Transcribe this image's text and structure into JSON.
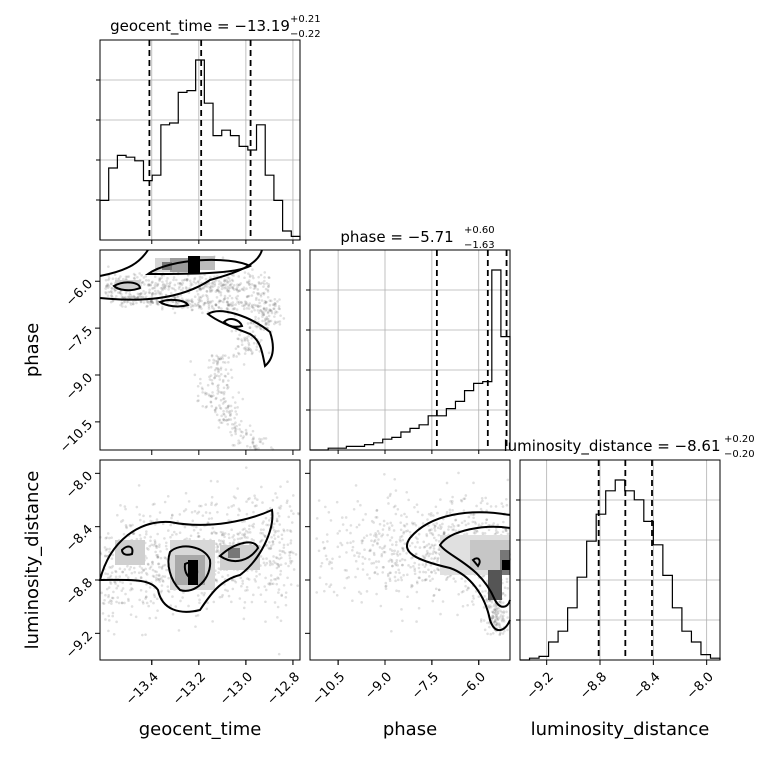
{
  "chart_data": {
    "type": "corner",
    "parameters": [
      "geocent_time",
      "phase",
      "luminosity_distance"
    ],
    "titles": [
      {
        "param": "geocent_time",
        "value": "−13.19",
        "plus": "+0.21",
        "minus": "−0.22",
        "prefix": "geocent_time = "
      },
      {
        "param": "phase",
        "value": "−5.71",
        "plus": "+0.60",
        "minus": "−1.63",
        "prefix": "phase = "
      },
      {
        "param": "luminosity_distance",
        "value": "−8.61",
        "plus": "+0.20",
        "minus": "−0.20",
        "prefix": "luminosity_distance = "
      }
    ],
    "ranges": {
      "geocent_time": [
        -13.62,
        -12.77
      ],
      "phase": [
        -11.4,
        -5.0
      ],
      "luminosity_distance": [
        -9.4,
        -7.9
      ]
    },
    "ticks": {
      "geocent_time": {
        "values": [
          -13.4,
          -13.2,
          -13.0,
          -12.8
        ],
        "labels": [
          "−13.4",
          "−13.2",
          "−13.0",
          "−12.8"
        ]
      },
      "phase": {
        "values": [
          -10.5,
          -9.0,
          -7.5,
          -6.0
        ],
        "labels": [
          "−10.5",
          "−9.0",
          "−7.5",
          "−6.0"
        ]
      },
      "luminosity_distance": {
        "values": [
          -9.2,
          -8.8,
          -8.4,
          -8.0
        ],
        "labels": [
          "−9.2",
          "−8.8",
          "−8.4",
          "−8.0"
        ]
      }
    },
    "quantiles": {
      "geocent_time": [
        -13.41,
        -13.19,
        -12.98
      ],
      "phase": [
        -7.34,
        -5.71,
        -5.11
      ],
      "luminosity_distance": [
        -8.81,
        -8.61,
        -8.41
      ]
    },
    "histograms": {
      "geocent_time": [
        0.22,
        0.4,
        0.47,
        0.46,
        0.44,
        0.33,
        0.36,
        0.64,
        0.65,
        0.82,
        0.83,
        1.0,
        0.76,
        0.58,
        0.61,
        0.58,
        0.52,
        0.5,
        0.64,
        0.36,
        0.22,
        0.05,
        0.02
      ],
      "phase": [
        0.0,
        0.0,
        0.01,
        0.01,
        0.02,
        0.02,
        0.03,
        0.04,
        0.06,
        0.07,
        0.1,
        0.12,
        0.14,
        0.19,
        0.19,
        0.23,
        0.27,
        0.33,
        0.37,
        0.38,
        1.0,
        0.63
      ],
      "luminosity_distance": [
        0.0,
        0.01,
        0.02,
        0.1,
        0.16,
        0.29,
        0.46,
        0.66,
        0.81,
        0.94,
        1.0,
        0.94,
        0.89,
        0.77,
        0.64,
        0.47,
        0.29,
        0.16,
        0.1,
        0.03,
        0.01
      ]
    },
    "grid": true
  }
}
